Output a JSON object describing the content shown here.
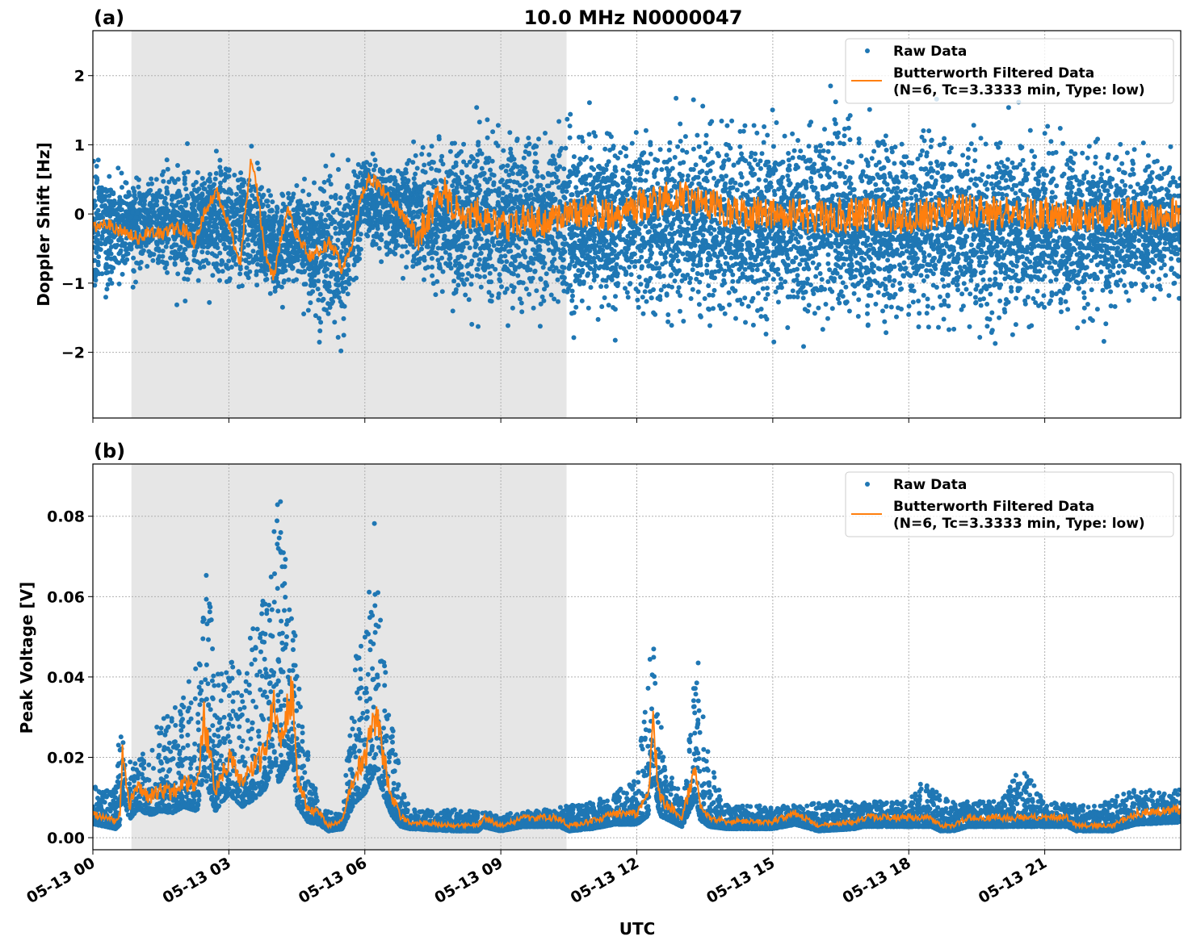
{
  "chart_data": [
    {
      "type": "scatter",
      "panel_label": "(a)",
      "title": "10.0 MHz N0000047",
      "xlabel": "",
      "ylabel": "Doppler Shift [Hz]",
      "xlim_hours": [
        0,
        24
      ],
      "ylim": [
        -2.95,
        2.65
      ],
      "yticks": [
        2,
        1,
        0,
        -1,
        -2
      ],
      "ytick_labels": [
        "2",
        "1",
        "0",
        "−1",
        "−2"
      ],
      "grid": true,
      "legend_placement": "top-right",
      "shaded_interval_hours": [
        0.85,
        10.45
      ],
      "shade_color": "#e6e6e6",
      "series": [
        {
          "name": "Raw Data",
          "kind": "scatter",
          "color": "#1f77b4",
          "envelope": {
            "t": [
              0,
              0.5,
              1,
              1.5,
              2,
              2.5,
              3,
              3.5,
              4,
              4.5,
              5,
              5.5,
              6,
              6.5,
              7,
              7.5,
              8,
              9,
              10,
              11,
              12,
              13,
              14,
              15,
              16,
              17,
              18,
              19,
              20,
              21,
              22,
              23,
              24
            ],
            "low": [
              -1.5,
              -1.2,
              -1.0,
              -1.0,
              -1.2,
              -1.0,
              -1.3,
              -1.3,
              -1.4,
              -1.3,
              -1.9,
              -2.0,
              -0.6,
              -0.7,
              -1.0,
              -1.3,
              -1.5,
              -1.6,
              -1.7,
              -1.8,
              -1.8,
              -1.7,
              -1.9,
              -1.8,
              -1.9,
              -1.9,
              -1.9,
              -1.9,
              -1.9,
              -1.9,
              -1.8,
              -1.4,
              -1.3
            ],
            "high": [
              1.2,
              0.8,
              0.7,
              0.8,
              0.9,
              0.9,
              1.0,
              1.1,
              0.5,
              0.6,
              0.8,
              0.9,
              1.0,
              0.9,
              1.1,
              1.2,
              1.3,
              1.4,
              1.5,
              1.5,
              1.4,
              1.5,
              1.5,
              1.5,
              1.6,
              1.5,
              1.5,
              1.5,
              1.4,
              1.4,
              1.3,
              1.1,
              1.0
            ]
          }
        },
        {
          "name": "Butterworth Filtered Data",
          "name_line2": "(N=6, Tc=3.3333 min, Type: low)",
          "kind": "line",
          "color": "#ff7f0e",
          "t": [
            0,
            0.25,
            0.5,
            0.75,
            1,
            1.25,
            1.5,
            1.75,
            2,
            2.25,
            2.5,
            2.75,
            3.0,
            3.25,
            3.4,
            3.5,
            3.65,
            3.8,
            4.0,
            4.15,
            4.3,
            4.5,
            4.75,
            5.0,
            5.25,
            5.5,
            5.7,
            5.9,
            6.1,
            6.3,
            6.6,
            6.9,
            7.15,
            7.4,
            7.75,
            8.0,
            8.5,
            9.0,
            9.5,
            10,
            10.5,
            11,
            11.5,
            12,
            12.5,
            13,
            13.5,
            14,
            15,
            16,
            17,
            18,
            19,
            20,
            21,
            22,
            23,
            24
          ],
          "values": [
            -0.2,
            -0.1,
            -0.2,
            -0.3,
            -0.35,
            -0.25,
            -0.3,
            -0.2,
            -0.2,
            -0.45,
            0.1,
            0.3,
            -0.2,
            -0.7,
            0.3,
            0.85,
            0.2,
            -0.6,
            -0.9,
            -0.35,
            0.05,
            -0.3,
            -0.6,
            -0.55,
            -0.4,
            -0.8,
            -0.5,
            0.2,
            0.55,
            0.4,
            0.2,
            -0.1,
            -0.35,
            0.0,
            0.3,
            0.05,
            0.0,
            -0.2,
            -0.1,
            -0.1,
            0.0,
            0.05,
            -0.05,
            0.1,
            0.2,
            0.25,
            0.2,
            0.0,
            0.0,
            -0.05,
            0.0,
            -0.05,
            0.05,
            0.0,
            0.0,
            -0.05,
            0.0,
            0.0
          ]
        }
      ]
    },
    {
      "type": "scatter",
      "panel_label": "(b)",
      "xlabel": "UTC",
      "ylabel": "Peak Voltage [V]",
      "xlim_hours": [
        0,
        24
      ],
      "ylim": [
        -0.003,
        0.093
      ],
      "yticks": [
        0.0,
        0.02,
        0.04,
        0.06,
        0.08
      ],
      "ytick_labels": [
        "0.00",
        "0.02",
        "0.04",
        "0.06",
        "0.08"
      ],
      "xticks_hours": [
        0,
        3,
        6,
        9,
        12,
        15,
        18,
        21
      ],
      "xtick_labels": [
        "05-13 00",
        "05-13 03",
        "05-13 06",
        "05-13 09",
        "05-13 12",
        "05-13 15",
        "05-13 18",
        "05-13 21"
      ],
      "grid": true,
      "legend_placement": "top-right",
      "shaded_interval_hours": [
        0.85,
        10.45
      ],
      "shade_color": "#e6e6e6",
      "series": [
        {
          "name": "Raw Data",
          "kind": "scatter",
          "color": "#1f77b4",
          "envelope": {
            "t": [
              0,
              0.5,
              0.6,
              0.8,
              1,
              1.5,
              2,
              2.4,
              2.5,
              2.7,
              3,
              3.3,
              3.6,
              3.9,
              4.1,
              4.4,
              4.6,
              5.0,
              5.5,
              5.8,
              6.0,
              6.2,
              6.5,
              6.8,
              7,
              8,
              9,
              10,
              11,
              11.5,
              12,
              12.35,
              12.6,
              13,
              13.35,
              13.6,
              14,
              15,
              16,
              17,
              18,
              18.3,
              19,
              20,
              20.5,
              21,
              22,
              23,
              24
            ],
            "high": [
              0.013,
              0.012,
              0.03,
              0.02,
              0.02,
              0.03,
              0.035,
              0.05,
              0.08,
              0.04,
              0.045,
              0.04,
              0.06,
              0.065,
              0.088,
              0.06,
              0.03,
              0.007,
              0.006,
              0.045,
              0.055,
              0.08,
              0.035,
              0.015,
              0.007,
              0.007,
              0.006,
              0.007,
              0.009,
              0.011,
              0.015,
              0.052,
              0.02,
              0.01,
              0.048,
              0.02,
              0.008,
              0.008,
              0.009,
              0.009,
              0.009,
              0.014,
              0.009,
              0.009,
              0.018,
              0.009,
              0.008,
              0.012,
              0.012
            ]
          }
        },
        {
          "name": "Butterworth Filtered Data",
          "name_line2": "(N=6, Tc=3.3333 min, Type: low)",
          "kind": "line",
          "color": "#ff7f0e",
          "t": [
            0,
            0.3,
            0.5,
            0.6,
            0.65,
            0.8,
            1.0,
            1.25,
            1.5,
            1.75,
            2.0,
            2.3,
            2.45,
            2.55,
            2.7,
            2.85,
            3.0,
            3.3,
            3.6,
            3.8,
            4.0,
            4.1,
            4.2,
            4.4,
            4.5,
            4.75,
            5.0,
            5.2,
            5.5,
            5.75,
            6.0,
            6.25,
            6.4,
            6.6,
            6.8,
            7.0,
            8.0,
            8.5,
            8.6,
            9.0,
            9.5,
            10.3,
            10.5,
            11.0,
            11.5,
            12.0,
            12.25,
            12.35,
            12.5,
            13.0,
            13.3,
            13.4,
            13.6,
            14.0,
            15.0,
            15.5,
            16.0,
            16.8,
            17.0,
            18.5,
            18.7,
            19.0,
            19.3,
            20.0,
            21.5,
            21.7,
            22.5,
            23.0,
            24.0
          ],
          "values": [
            0.006,
            0.005,
            0.004,
            0.006,
            0.021,
            0.008,
            0.013,
            0.01,
            0.012,
            0.011,
            0.014,
            0.012,
            0.03,
            0.022,
            0.012,
            0.016,
            0.02,
            0.014,
            0.018,
            0.022,
            0.035,
            0.025,
            0.028,
            0.037,
            0.015,
            0.007,
            0.006,
            0.003,
            0.004,
            0.015,
            0.02,
            0.031,
            0.02,
            0.01,
            0.005,
            0.004,
            0.003,
            0.003,
            0.005,
            0.003,
            0.005,
            0.005,
            0.003,
            0.004,
            0.006,
            0.006,
            0.01,
            0.029,
            0.01,
            0.005,
            0.018,
            0.008,
            0.005,
            0.004,
            0.004,
            0.006,
            0.003,
            0.004,
            0.005,
            0.005,
            0.003,
            0.003,
            0.005,
            0.005,
            0.005,
            0.003,
            0.003,
            0.006,
            0.007
          ]
        }
      ]
    }
  ]
}
